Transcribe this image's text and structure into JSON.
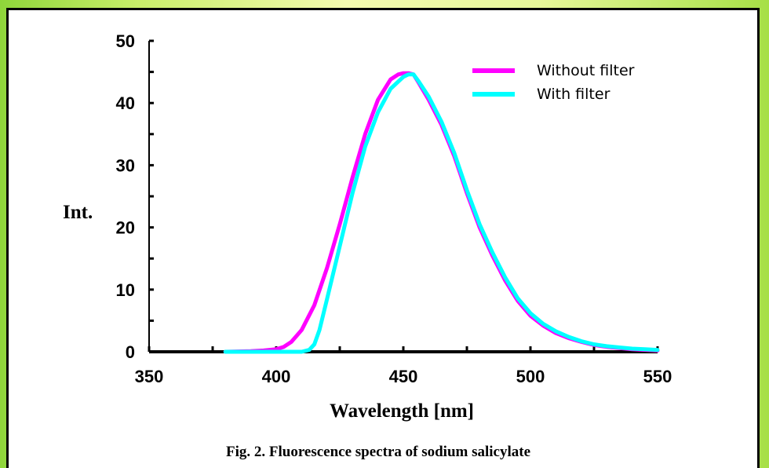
{
  "chart_data": {
    "type": "line",
    "title": "",
    "caption": "Fig. 2.  Fluorescence spectra of sodium salicylate",
    "xlabel": "Wavelength [nm]",
    "ylabel": "Int.",
    "xlim": [
      350,
      550
    ],
    "ylim": [
      0,
      50
    ],
    "xticks": [
      350,
      400,
      450,
      500,
      550
    ],
    "yticks": [
      0,
      10,
      20,
      30,
      40,
      50
    ],
    "grid": false,
    "legend_position": "top-right",
    "series": [
      {
        "name": "Without filter",
        "color": "#ff00ff",
        "x": [
          380,
          390,
          395,
          400,
          403,
          406,
          410,
          415,
          420,
          425,
          430,
          435,
          440,
          445,
          448,
          450,
          452,
          454,
          456,
          460,
          465,
          470,
          475,
          480,
          485,
          490,
          495,
          500,
          505,
          510,
          515,
          520,
          525,
          530,
          535,
          540,
          545,
          550
        ],
        "y": [
          0,
          0.1,
          0.2,
          0.4,
          0.8,
          1.6,
          3.5,
          7.5,
          13.5,
          20.5,
          28,
          35,
          40.5,
          43.8,
          44.6,
          44.8,
          44.8,
          44.6,
          43.3,
          40.5,
          36.5,
          31.5,
          25.5,
          20,
          15.5,
          11.5,
          8.2,
          5.8,
          4.2,
          3.0,
          2.2,
          1.6,
          1.1,
          0.8,
          0.6,
          0.4,
          0.3,
          0.2
        ]
      },
      {
        "name": "With filter",
        "color": "#00ffff",
        "x": [
          380,
          400,
          410,
          413,
          415,
          417,
          420,
          425,
          430,
          435,
          440,
          445,
          450,
          452,
          454,
          456,
          460,
          465,
          470,
          475,
          480,
          485,
          490,
          495,
          500,
          505,
          510,
          515,
          520,
          525,
          530,
          535,
          540,
          545,
          550
        ],
        "y": [
          0,
          0,
          0,
          0.3,
          1.2,
          3.5,
          8.5,
          17,
          25.5,
          33,
          38.5,
          42.3,
          44.2,
          44.6,
          44.6,
          43.5,
          41,
          37,
          32,
          26,
          20.5,
          16,
          12,
          8.6,
          6.2,
          4.5,
          3.3,
          2.4,
          1.7,
          1.2,
          0.9,
          0.7,
          0.5,
          0.4,
          0.3
        ]
      }
    ]
  }
}
